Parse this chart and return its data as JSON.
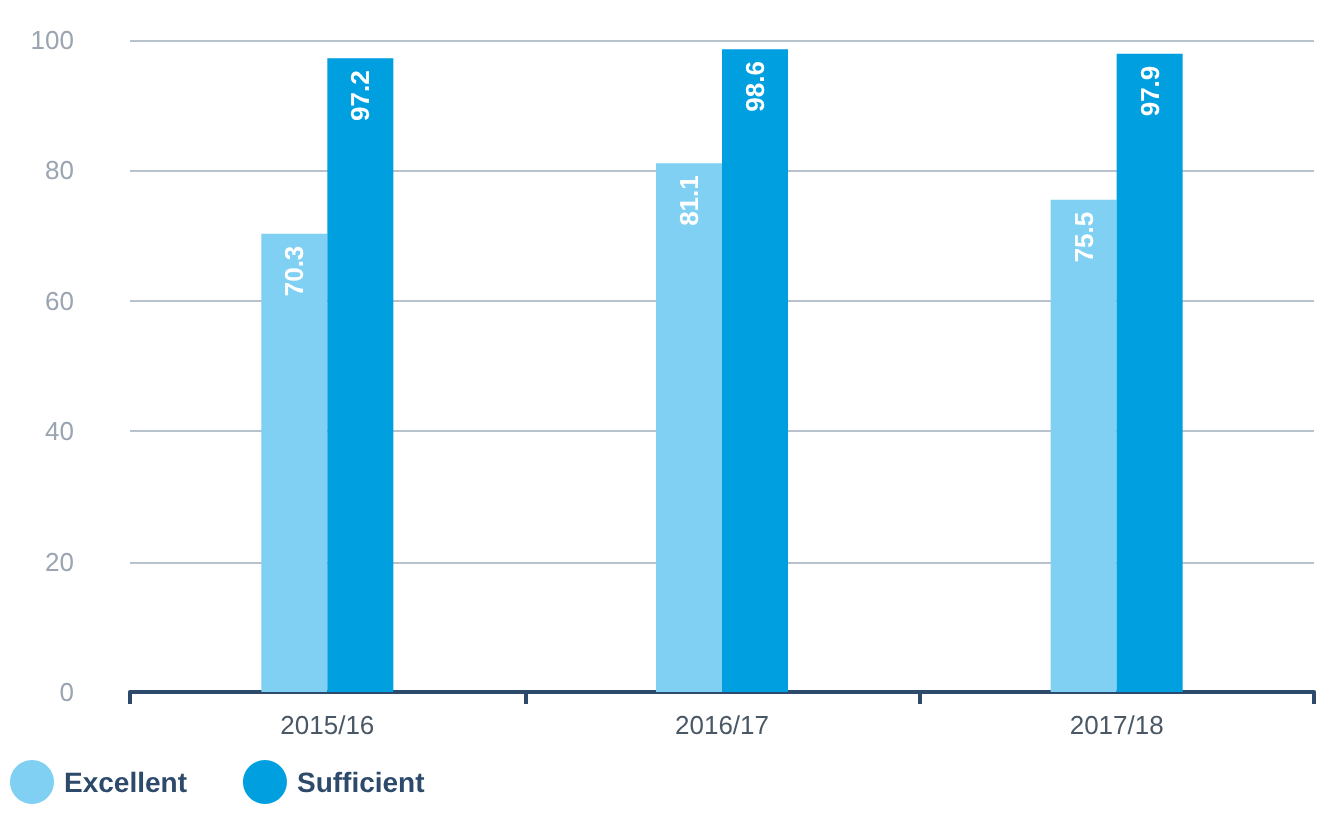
{
  "chart_data": {
    "type": "bar",
    "categories": [
      "2015/16",
      "2016/17",
      "2017/18"
    ],
    "series": [
      {
        "name": "Excellent",
        "color": "#7fd0f2",
        "values": [
          70.3,
          81.1,
          75.5
        ]
      },
      {
        "name": "Sufficient",
        "color": "#009fe0",
        "values": [
          97.2,
          98.6,
          97.9
        ]
      }
    ],
    "ylim": [
      0,
      100
    ],
    "yticks": [
      0,
      20,
      40,
      60,
      80,
      100
    ],
    "grid": "y",
    "legend": "bottom left",
    "data_labels": true
  }
}
